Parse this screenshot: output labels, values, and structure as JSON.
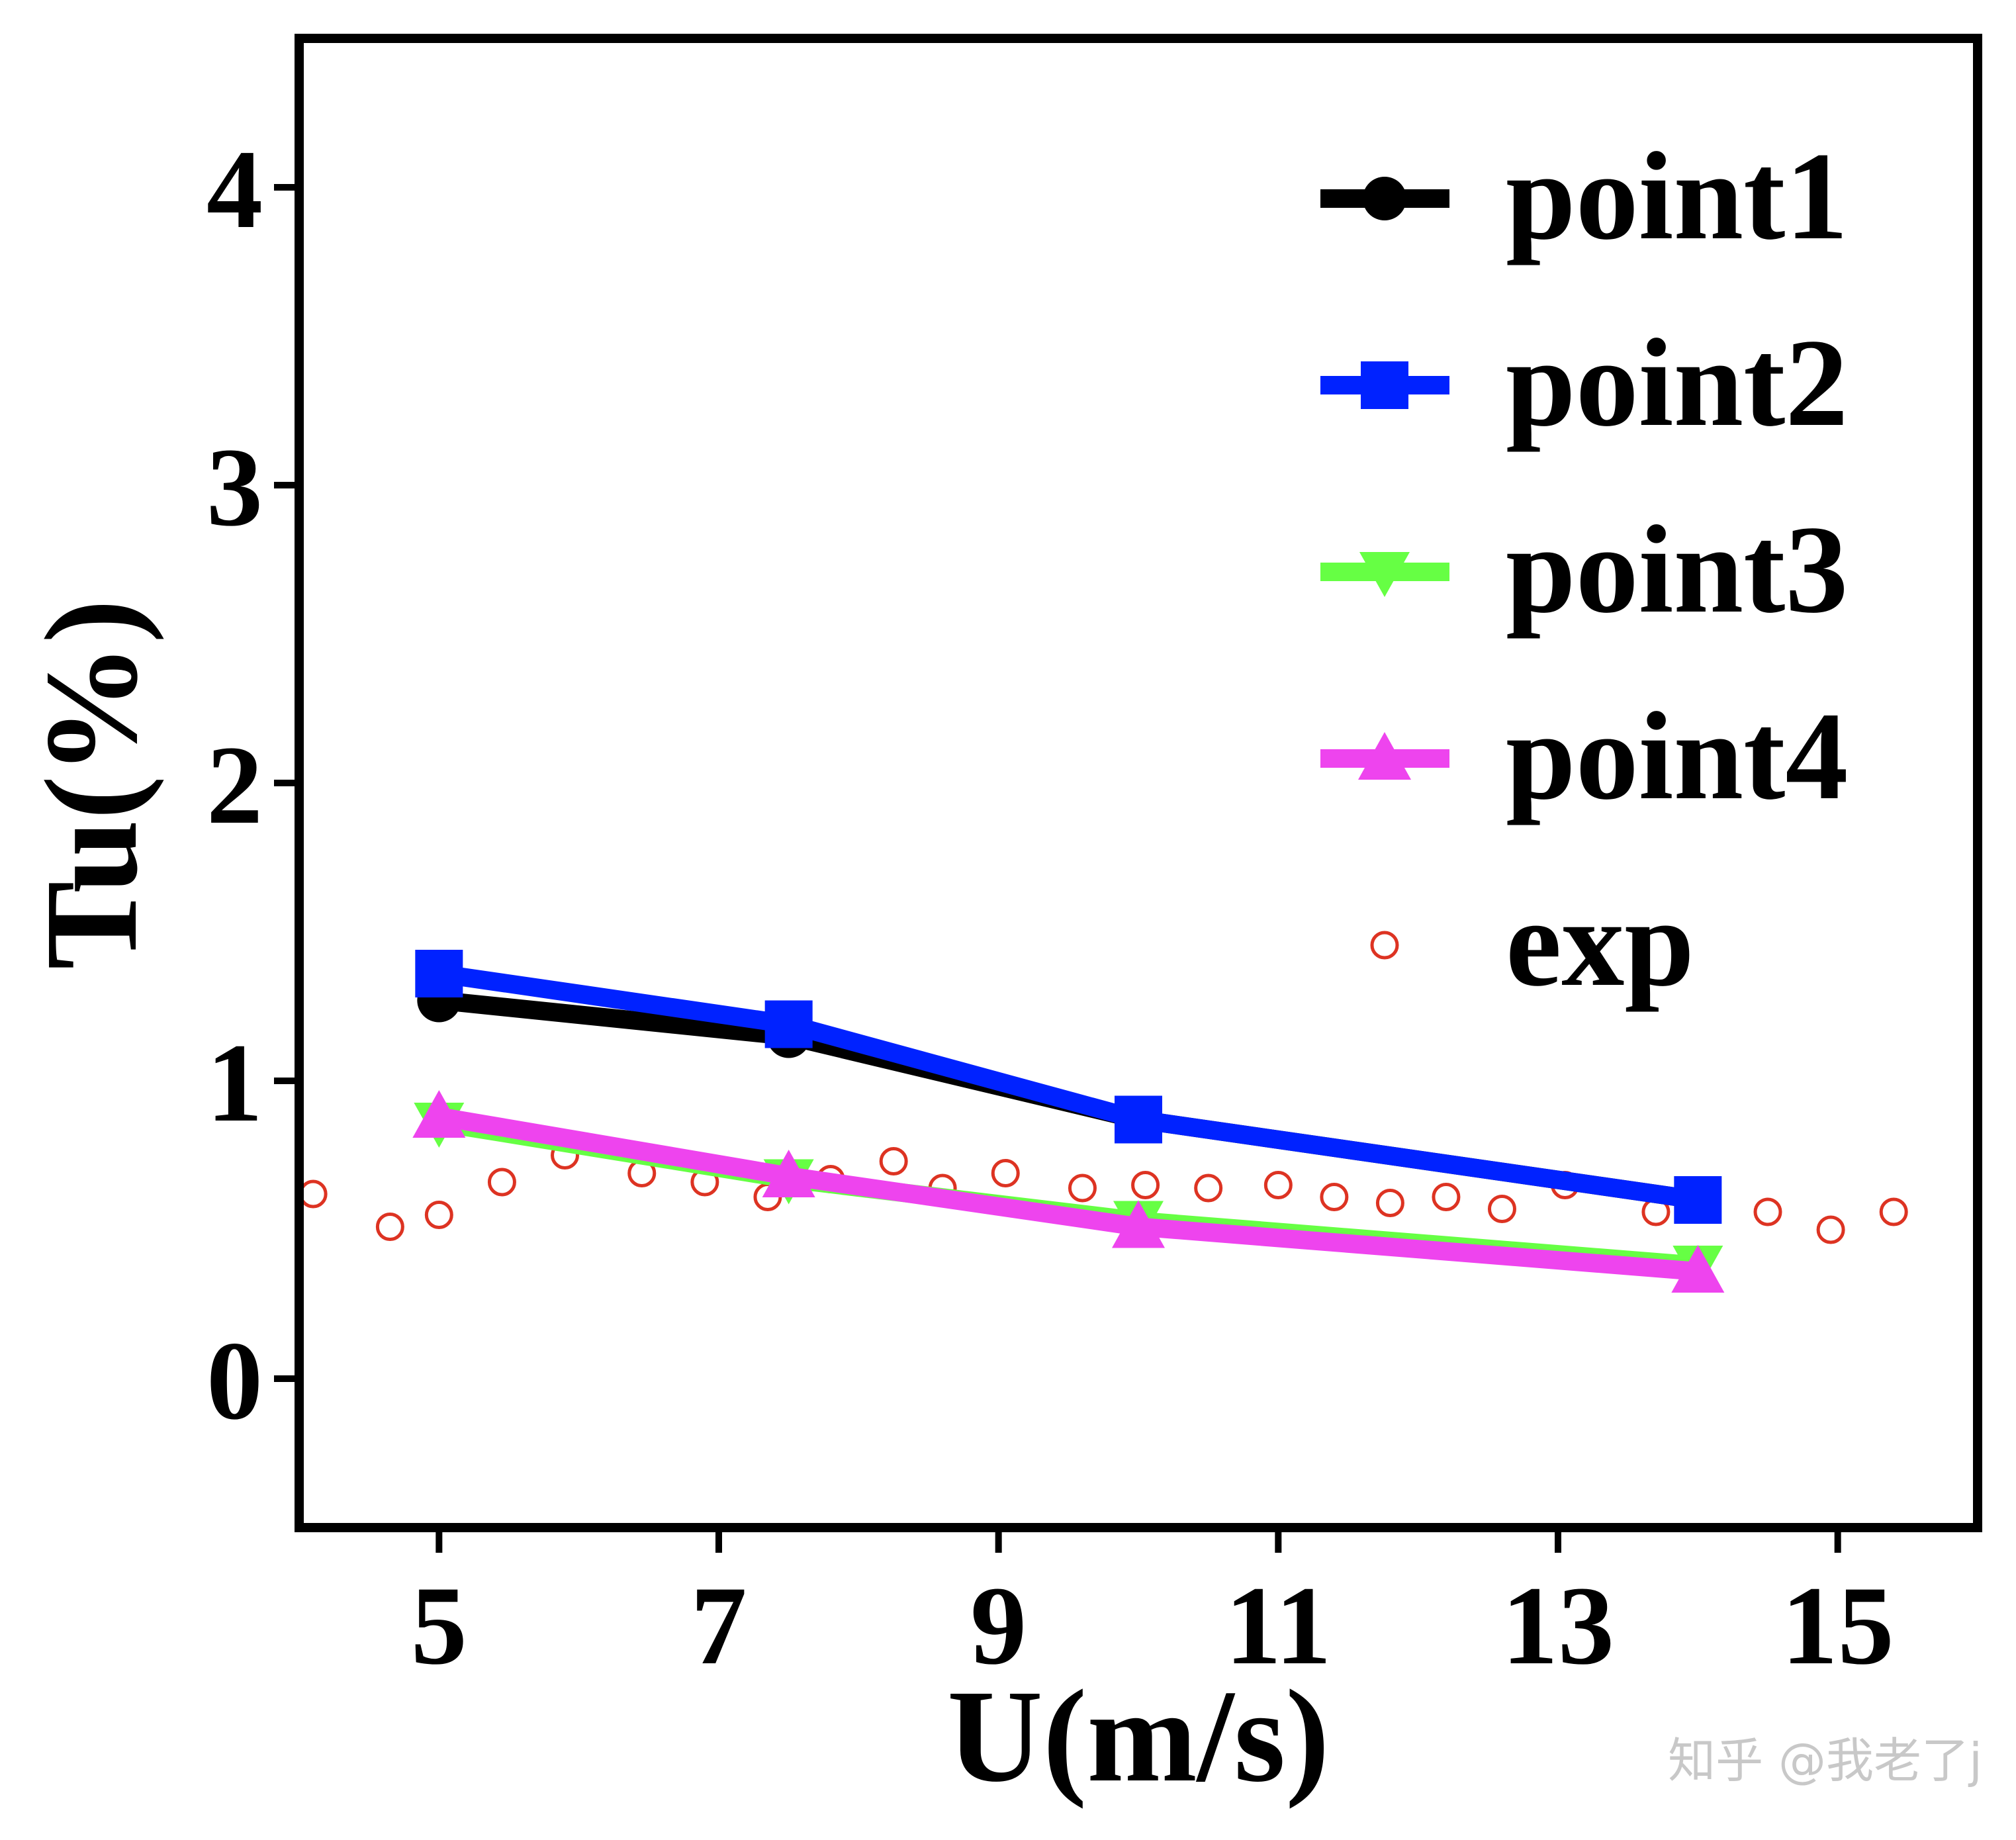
{
  "chart_data": {
    "type": "line",
    "title": "",
    "xlabel": "U(m/s)",
    "ylabel": "Tu(%)",
    "xlim": [
      4,
      16
    ],
    "ylim": [
      -0.5,
      4.5
    ],
    "xticks": [
      5,
      7,
      9,
      11,
      13,
      15
    ],
    "yticks": [
      0,
      1,
      2,
      3,
      4
    ],
    "grid": false,
    "legend_position": "top-right",
    "series": [
      {
        "name": "point1",
        "color": "#000000",
        "marker": "circle",
        "x": [
          5,
          7.5,
          10,
          14
        ],
        "y": [
          1.27,
          1.15,
          0.87,
          0.6
        ]
      },
      {
        "name": "point2",
        "color": "#0022ff",
        "marker": "square",
        "x": [
          5,
          7.5,
          10,
          14
        ],
        "y": [
          1.36,
          1.19,
          0.87,
          0.6
        ]
      },
      {
        "name": "point3",
        "color": "#66ff44",
        "marker": "triangle-down",
        "x": [
          5,
          7.5,
          10,
          14
        ],
        "y": [
          0.86,
          0.67,
          0.53,
          0.38
        ]
      },
      {
        "name": "point4",
        "color": "#ee44ee",
        "marker": "triangle-up",
        "x": [
          5,
          7.5,
          10,
          14
        ],
        "y": [
          0.88,
          0.68,
          0.51,
          0.36
        ]
      },
      {
        "name": "exp",
        "color": "#dd3322",
        "marker": "open-circle",
        "line": false,
        "x": [
          4.1,
          4.65,
          5.0,
          5.45,
          5.9,
          6.45,
          6.9,
          7.35,
          7.8,
          8.25,
          8.6,
          9.05,
          9.6,
          10.05,
          10.5,
          11.0,
          11.4,
          11.8,
          12.2,
          12.6,
          13.05,
          13.7,
          14.5,
          14.95,
          15.4
        ],
        "y": [
          0.62,
          0.51,
          0.55,
          0.66,
          0.75,
          0.69,
          0.66,
          0.61,
          0.67,
          0.73,
          0.64,
          0.69,
          0.64,
          0.65,
          0.64,
          0.65,
          0.61,
          0.59,
          0.61,
          0.57,
          0.65,
          0.56,
          0.56,
          0.5,
          0.56
        ]
      }
    ]
  },
  "watermark": "知乎 @我老了j"
}
